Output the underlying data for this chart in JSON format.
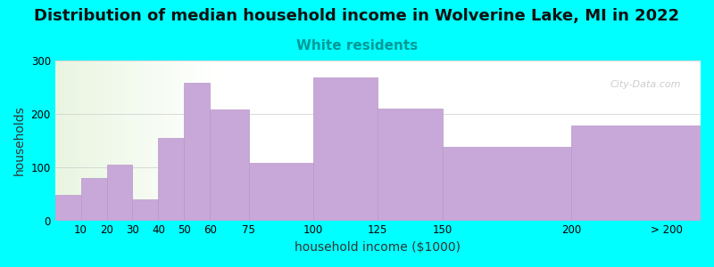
{
  "title": "Distribution of median household income in Wolverine Lake, MI in 2022",
  "subtitle": "White residents",
  "xlabel": "household income ($1000)",
  "ylabel": "households",
  "background_color": "#00FFFF",
  "bar_color": "#C8A8D8",
  "bar_edge_color": "#b898c8",
  "edges": [
    0,
    10,
    20,
    30,
    40,
    50,
    60,
    75,
    100,
    125,
    150,
    200,
    250
  ],
  "values": [
    48,
    80,
    105,
    40,
    155,
    258,
    208,
    108,
    268,
    210,
    138,
    178
  ],
  "xtick_positions": [
    10,
    20,
    30,
    40,
    50,
    60,
    75,
    100,
    125,
    150,
    200
  ],
  "xtick_labels": [
    "10",
    "20",
    "30",
    "40",
    "50",
    "60",
    "75",
    "100",
    "125",
    "150",
    "200"
  ],
  "xtick_extra_pos": 237,
  "xtick_extra_label": "> 200",
  "ylim": [
    0,
    300
  ],
  "yticks": [
    0,
    100,
    200,
    300
  ],
  "xlim": [
    0,
    250
  ],
  "title_fontsize": 13,
  "subtitle_fontsize": 11,
  "subtitle_color": "#009999",
  "axis_label_fontsize": 10,
  "watermark": "City-Data.com"
}
